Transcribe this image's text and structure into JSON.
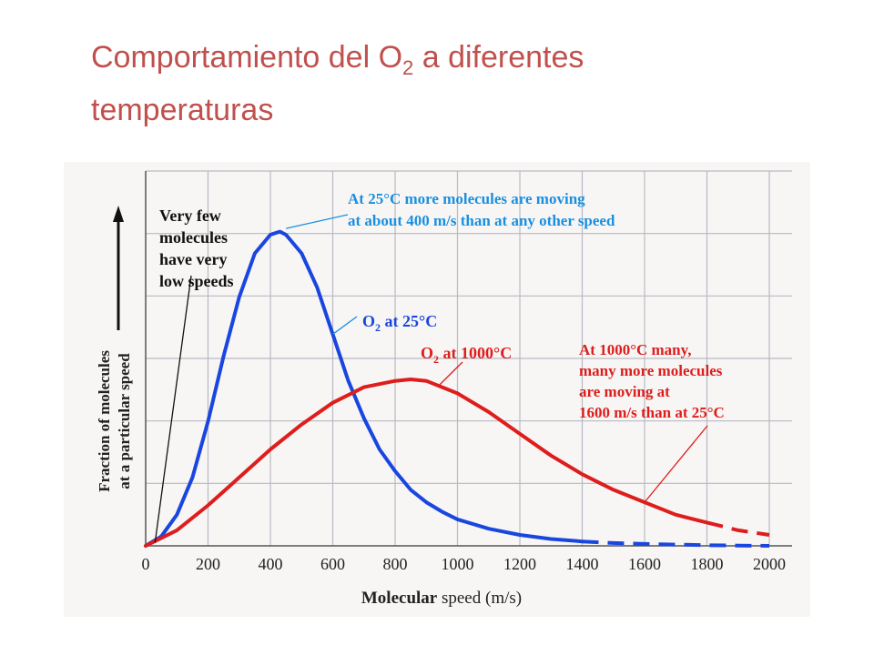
{
  "slide": {
    "title_part1": "Comportamiento del O",
    "title_sub": "2",
    "title_part2": " a diferentes",
    "title_line2": "temperaturas"
  },
  "chart_data": {
    "type": "line",
    "xlabel_bold": "Molecular",
    "xlabel_rest": " speed (m/s)",
    "ylabel_line1": "Fraction of molecules",
    "ylabel_line2": "at a particular speed",
    "xlim": [
      0,
      2000
    ],
    "x_ticks": [
      0,
      200,
      400,
      600,
      800,
      1000,
      1200,
      1400,
      1600,
      1800,
      2000
    ],
    "ylim": [
      0,
      1
    ],
    "y_ticks_labeled": false,
    "grid": true,
    "colors": {
      "o2_25": "#1a46e0",
      "o2_1000": "#de1d1d",
      "grid": "#b9b9c4",
      "text": "#222222"
    },
    "series": [
      {
        "name_main": "O",
        "name_sub": "2",
        "name_rest": " at 25°C",
        "solid_until": 1400,
        "x": [
          0,
          50,
          100,
          150,
          200,
          250,
          300,
          350,
          400,
          430,
          450,
          500,
          550,
          600,
          650,
          700,
          750,
          800,
          850,
          900,
          950,
          1000,
          1100,
          1200,
          1300,
          1400,
          1500,
          1600,
          1700,
          1800,
          1900,
          2000
        ],
        "y": [
          0,
          0.03,
          0.1,
          0.22,
          0.4,
          0.61,
          0.8,
          0.94,
          1.0,
          1.01,
          1.0,
          0.94,
          0.83,
          0.68,
          0.53,
          0.41,
          0.31,
          0.24,
          0.18,
          0.14,
          0.11,
          0.085,
          0.055,
          0.035,
          0.022,
          0.014,
          0.009,
          0.006,
          0.004,
          0.002,
          0.001,
          0.0
        ]
      },
      {
        "name_main": "O",
        "name_sub": "2",
        "name_rest": " at 1000°C",
        "solid_until": 1800,
        "x": [
          0,
          100,
          200,
          300,
          400,
          500,
          600,
          700,
          800,
          850,
          900,
          1000,
          1100,
          1200,
          1300,
          1400,
          1500,
          1600,
          1700,
          1800,
          1900,
          2000
        ],
        "y": [
          0,
          0.05,
          0.13,
          0.22,
          0.31,
          0.39,
          0.46,
          0.51,
          0.53,
          0.535,
          0.53,
          0.49,
          0.43,
          0.36,
          0.29,
          0.23,
          0.18,
          0.14,
          0.1,
          0.075,
          0.05,
          0.035
        ]
      }
    ],
    "annotations": {
      "few_low": [
        "Very few",
        "molecules",
        "have very",
        "low speeds"
      ],
      "peak_25": [
        "At 25°C more molecules are moving",
        "at about 400 m/s than at any other speed"
      ],
      "many_1000": [
        "At 1000°C many,",
        "many more molecules",
        "are moving at",
        "1600 m/s than at 25°C"
      ]
    }
  }
}
